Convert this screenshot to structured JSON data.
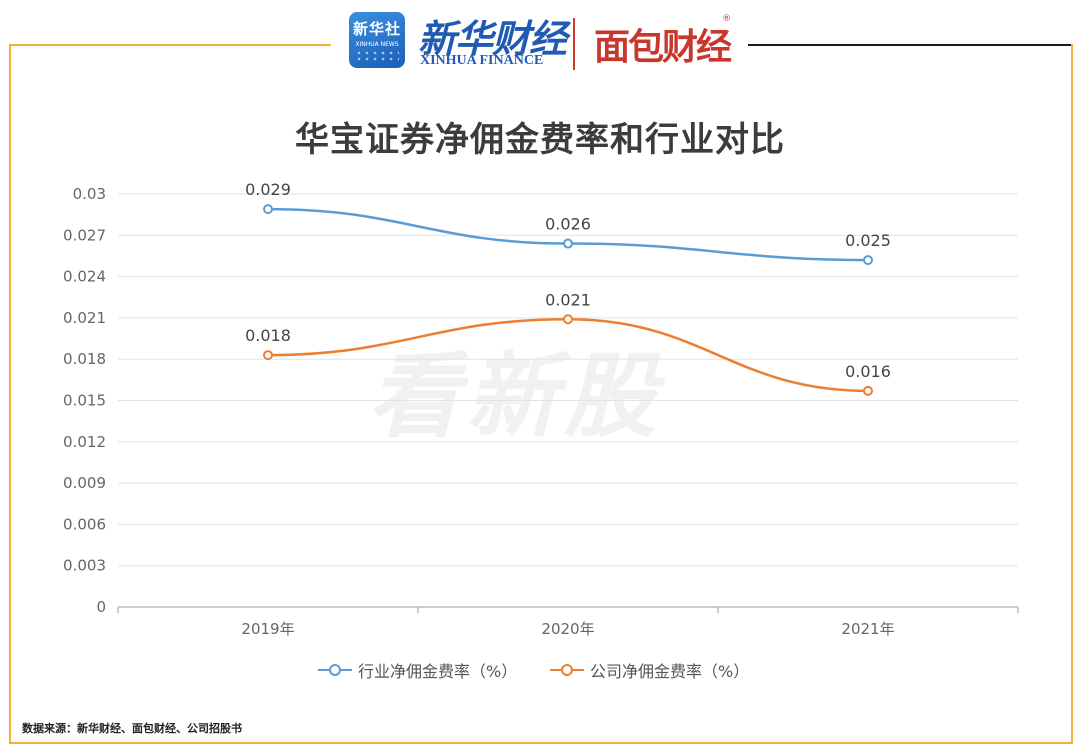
{
  "header": {
    "badge_main": "新华社",
    "badge_sub": "XINHUA NEWS",
    "xinhua_cn": "新华财经",
    "xinhua_en": "XINHUA FINANCE",
    "mianbao": "面包财经",
    "reg_mark": "®"
  },
  "watermark": "看新股",
  "source": "数据来源：新华财经、面包财经、公司招股书",
  "colors": {
    "industry": "#5b9bd5",
    "company": "#ed7d31",
    "frame": "#f2b13a"
  },
  "chart_data": {
    "type": "line",
    "title": "华宝证券净佣金费率和行业对比",
    "categories": [
      "2019年",
      "2020年",
      "2021年"
    ],
    "yticks": [
      "0",
      "0.003",
      "0.006",
      "0.009",
      "0.012",
      "0.015",
      "0.018",
      "0.021",
      "0.024",
      "0.027",
      "0.03"
    ],
    "ylim": [
      0,
      0.03
    ],
    "grid": true,
    "legend_position": "bottom",
    "series": [
      {
        "name": "行业净佣金费率（%）",
        "values": [
          0.0289,
          0.0264,
          0.0252
        ],
        "labels": [
          "0.029",
          "0.026",
          "0.025"
        ],
        "color": "#5b9bd5"
      },
      {
        "name": "公司净佣金费率（%）",
        "values": [
          0.0183,
          0.0209,
          0.0157
        ],
        "labels": [
          "0.018",
          "0.021",
          "0.016"
        ],
        "color": "#ed7d31"
      }
    ]
  }
}
